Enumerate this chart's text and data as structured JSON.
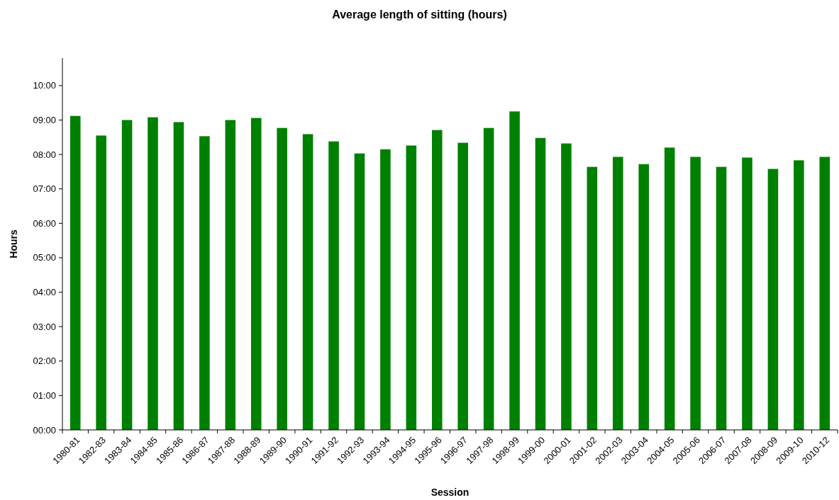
{
  "chart_data": {
    "type": "bar",
    "title": "Average length of sitting (hours)",
    "xlabel": "Session",
    "ylabel": "Hours",
    "categories": [
      "1980-81",
      "1982-83",
      "1983-84",
      "1984-85",
      "1985-86",
      "1986-87",
      "1987-88",
      "1988-89",
      "1989-90",
      "1990-91",
      "1991-92",
      "1992-93",
      "1993-94",
      "1994-95",
      "1995-96",
      "1996-97",
      "1997-98",
      "1998-99",
      "1999-00",
      "2000-01",
      "2001-02",
      "2002-03",
      "2003-04",
      "2004-05",
      "2005-06",
      "2006-07",
      "2007-08",
      "2008-09",
      "2009-10",
      "2010-12"
    ],
    "values": [
      9.12,
      8.55,
      9.0,
      9.08,
      8.94,
      8.53,
      9.0,
      9.06,
      8.77,
      8.59,
      8.38,
      8.03,
      8.15,
      8.26,
      8.71,
      8.34,
      8.77,
      9.25,
      8.48,
      8.32,
      7.64,
      7.93,
      7.72,
      8.2,
      7.93,
      7.64,
      7.91,
      7.58,
      7.83,
      7.93
    ],
    "color": "#008000",
    "ylim": [
      0,
      10.8
    ],
    "yticks": [
      {
        "value": 0,
        "label": "00:00"
      },
      {
        "value": 1,
        "label": "01:00"
      },
      {
        "value": 2,
        "label": "02:00"
      },
      {
        "value": 3,
        "label": "03:00"
      },
      {
        "value": 4,
        "label": "04:00"
      },
      {
        "value": 5,
        "label": "05:00"
      },
      {
        "value": 6,
        "label": "06:00"
      },
      {
        "value": 7,
        "label": "07:00"
      },
      {
        "value": 8,
        "label": "08:00"
      },
      {
        "value": 9,
        "label": "09:00"
      },
      {
        "value": 10,
        "label": "10:00"
      }
    ],
    "grid": false
  }
}
